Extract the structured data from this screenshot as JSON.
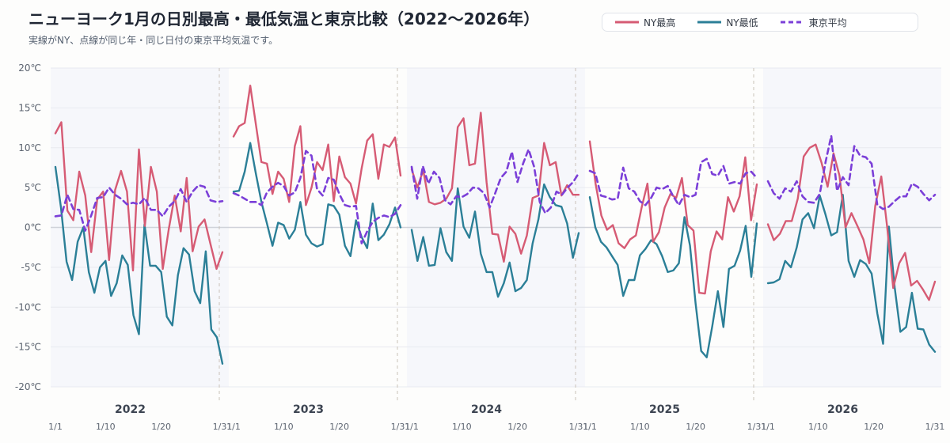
{
  "header": {
    "title": "ニューヨーク1月の日別最高・最低気温と東京比較（2022〜2026年）",
    "subtitle": "実線がNY、点線が同じ年・同じ日付の東京平均気温です。"
  },
  "colors": {
    "ny_high": "#d65b74",
    "ny_low": "#2b7f97",
    "tokyo_avg": "#7b3fd8",
    "panel_bg": "#f6f7fb",
    "grid": "#e8eaf0",
    "zero_line": "#d0d3da",
    "separator": "#c9c2b8"
  },
  "chart_data": {
    "type": "line",
    "y_unit_suffix": "℃",
    "ylim": [
      -20,
      20
    ],
    "y_ticks": [
      20,
      15,
      10,
      5,
      0,
      -5,
      -10,
      -15,
      -20
    ],
    "x_day_ticks": [
      1,
      10,
      20,
      31
    ],
    "x_tick_labels": [
      "1/1",
      "1/10",
      "1/20",
      "1/31"
    ],
    "grid": true,
    "legend_position": "top-right",
    "series_names": [
      "NY最高",
      "NY最低",
      "東京平均"
    ],
    "panels": [
      {
        "year": "2022",
        "ny_high": [
          11.8,
          13.2,
          2.1,
          0.9,
          7.0,
          4.0,
          -3.1,
          3.5,
          4.5,
          -4.1,
          4.7,
          7.1,
          4.5,
          -5.4,
          9.8,
          0.2,
          7.6,
          4.5,
          -5.2,
          -0.2,
          4.0,
          -0.5,
          6.2,
          -3.0,
          0.1,
          1.0,
          -2.1,
          -5.2,
          -3.1
        ],
        "ny_low": [
          7.6,
          2.5,
          -4.3,
          -6.6,
          -1.8,
          0.0,
          -5.6,
          -8.2,
          -5.0,
          -4.2,
          -8.6,
          -7.0,
          -3.5,
          -4.7,
          -11.0,
          -13.4,
          0.4,
          -4.8,
          -4.8,
          -5.6,
          -11.2,
          -12.3,
          -6.0,
          -2.6,
          -3.4,
          -8.0,
          -9.5,
          -3.0,
          -12.8,
          -13.8,
          -17.1
        ],
        "tokyo_avg": [
          1.4,
          1.5,
          4.1,
          2.3,
          2.2,
          -0.4,
          1.5,
          3.7,
          3.8,
          5.0,
          4.1,
          3.6,
          2.9,
          3.1,
          2.9,
          3.7,
          2.2,
          2.2,
          1.4,
          2.6,
          3.3,
          4.8,
          3.2,
          4.5,
          5.3,
          5.1,
          3.4,
          3.2,
          3.3
        ]
      },
      {
        "year": "2023",
        "ny_high": [
          11.4,
          12.7,
          13.1,
          17.8,
          13.0,
          8.2,
          8.0,
          4.2,
          7.0,
          6.1,
          3.2,
          10.2,
          12.7,
          2.8,
          5.0,
          8.2,
          7.2,
          10.4,
          3.3,
          8.9,
          6.3,
          5.5,
          3.0,
          7.4,
          10.9,
          11.7,
          6.1,
          10.4,
          10.1,
          11.3,
          6.5
        ],
        "ny_low": [
          4.5,
          4.6,
          7.0,
          10.6,
          6.8,
          3.2,
          0.5,
          -2.3,
          0.6,
          0.3,
          -1.4,
          -0.3,
          3.2,
          -0.9,
          -2.0,
          -2.4,
          -2.1,
          2.9,
          2.7,
          1.6,
          -2.3,
          -3.6,
          0.9,
          -1.2,
          -2.6,
          3.0,
          -1.6,
          -0.9,
          0.4,
          2.5,
          0.0
        ],
        "tokyo_avg": [
          4.3,
          4.0,
          3.6,
          3.2,
          3.2,
          2.8,
          4.4,
          5.1,
          5.6,
          5.2,
          4.0,
          4.4,
          6.2,
          9.6,
          9.0,
          4.8,
          4.0,
          6.2,
          6.0,
          4.2,
          2.8,
          2.6,
          2.7,
          -2.0,
          -0.5,
          0.7,
          1.2,
          1.5,
          1.3,
          1.7,
          2.8
        ]
      },
      {
        "year": "2024",
        "ny_high": [
          7.3,
          5.0,
          7.2,
          3.2,
          2.9,
          3.1,
          3.6,
          4.9,
          12.6,
          13.7,
          7.8,
          8.0,
          14.4,
          5.7,
          -0.8,
          -0.9,
          -4.3,
          0.1,
          -0.8,
          -3.3,
          -1.0,
          3.7,
          4.0,
          10.6,
          7.8,
          8.2,
          4.0,
          5.3,
          4.1,
          4.1
        ],
        "ny_low": [
          -0.3,
          -4.2,
          -1.2,
          -4.8,
          -4.7,
          -0.1,
          -3.1,
          -4.2,
          4.9,
          0.1,
          -1.3,
          2.0,
          -3.3,
          -5.6,
          -5.6,
          -8.7,
          -7.0,
          -4.4,
          -8.0,
          -7.6,
          -6.6,
          -2.0,
          1.0,
          5.4,
          3.8,
          2.8,
          2.6,
          0.5,
          -3.8,
          -0.7
        ],
        "tokyo_avg": [
          7.6,
          3.6,
          7.7,
          5.5,
          7.0,
          6.2,
          3.4,
          2.9,
          3.9,
          3.8,
          4.2,
          5.0,
          4.9,
          4.3,
          2.5,
          4.3,
          6.2,
          7.0,
          9.5,
          5.7,
          8.0,
          9.8,
          7.6,
          3.2,
          1.8,
          2.5,
          4.5,
          4.1,
          5.0,
          5.7,
          6.8
        ]
      },
      {
        "year": "2025",
        "ny_high": [
          10.8,
          5.5,
          1.5,
          -0.3,
          0.3,
          -2.0,
          -2.6,
          -1.5,
          -1.0,
          2.5,
          5.5,
          -1.8,
          -0.6,
          2.5,
          4.2,
          3.7,
          6.2,
          0.3,
          -0.4,
          -8.2,
          -8.3,
          -3.0,
          -0.5,
          -1.5,
          3.8,
          2.0,
          3.9,
          8.8,
          0.9,
          5.4
        ],
        "ny_low": [
          3.8,
          0.0,
          -1.8,
          -2.5,
          -3.6,
          -4.7,
          -8.6,
          -6.6,
          -6.6,
          -3.5,
          -2.7,
          -1.6,
          -2.1,
          -3.6,
          -5.6,
          -5.4,
          -4.5,
          1.3,
          -2.3,
          -9.5,
          -15.5,
          -16.3,
          -12.4,
          -8.0,
          -12.5,
          -5.2,
          -4.8,
          -2.9,
          0.2,
          -6.2,
          0.5
        ],
        "tokyo_avg": [
          7.1,
          6.8,
          4.0,
          3.8,
          3.5,
          3.6,
          7.5,
          4.9,
          4.5,
          3.3,
          2.8,
          3.7,
          5.0,
          4.8,
          5.2,
          3.9,
          2.8,
          4.1,
          3.8,
          4.1,
          8.2,
          8.6,
          6.7,
          6.5,
          7.7,
          5.5,
          5.7,
          5.5,
          6.8,
          7.0,
          6.2
        ]
      },
      {
        "year": "2026",
        "ny_high": [
          0.4,
          -1.6,
          -0.8,
          0.8,
          0.8,
          3.6,
          8.9,
          10.0,
          10.4,
          8.1,
          5.1,
          9.3,
          6.5,
          0.0,
          1.8,
          0.2,
          -1.5,
          -4.5,
          2.7,
          6.4,
          0.0,
          -7.6,
          -4.5,
          -3.2,
          -7.3,
          -6.7,
          -7.8,
          -9.1,
          -6.8
        ],
        "ny_low": [
          -7.0,
          -6.9,
          -6.5,
          -4.2,
          -5.0,
          -2.5,
          1.0,
          1.8,
          -0.1,
          4.0,
          1.6,
          -1.0,
          -0.6,
          4.1,
          -4.2,
          -6.2,
          -4.1,
          -4.6,
          -5.8,
          -10.8,
          -14.6,
          0.1,
          -7.5,
          -13.1,
          -12.5,
          -8.2,
          -12.7,
          -12.8,
          -14.7,
          -15.6
        ],
        "tokyo_avg": [
          5.8,
          4.3,
          3.6,
          4.9,
          4.5,
          5.8,
          3.9,
          3.2,
          3.1,
          4.2,
          8.2,
          11.5,
          4.6,
          6.3,
          5.3,
          10.2,
          9.0,
          8.8,
          8.0,
          2.8,
          2.3,
          2.6,
          3.3,
          3.9,
          3.9,
          5.5,
          5.1,
          4.2,
          3.4,
          4.1
        ]
      }
    ]
  }
}
